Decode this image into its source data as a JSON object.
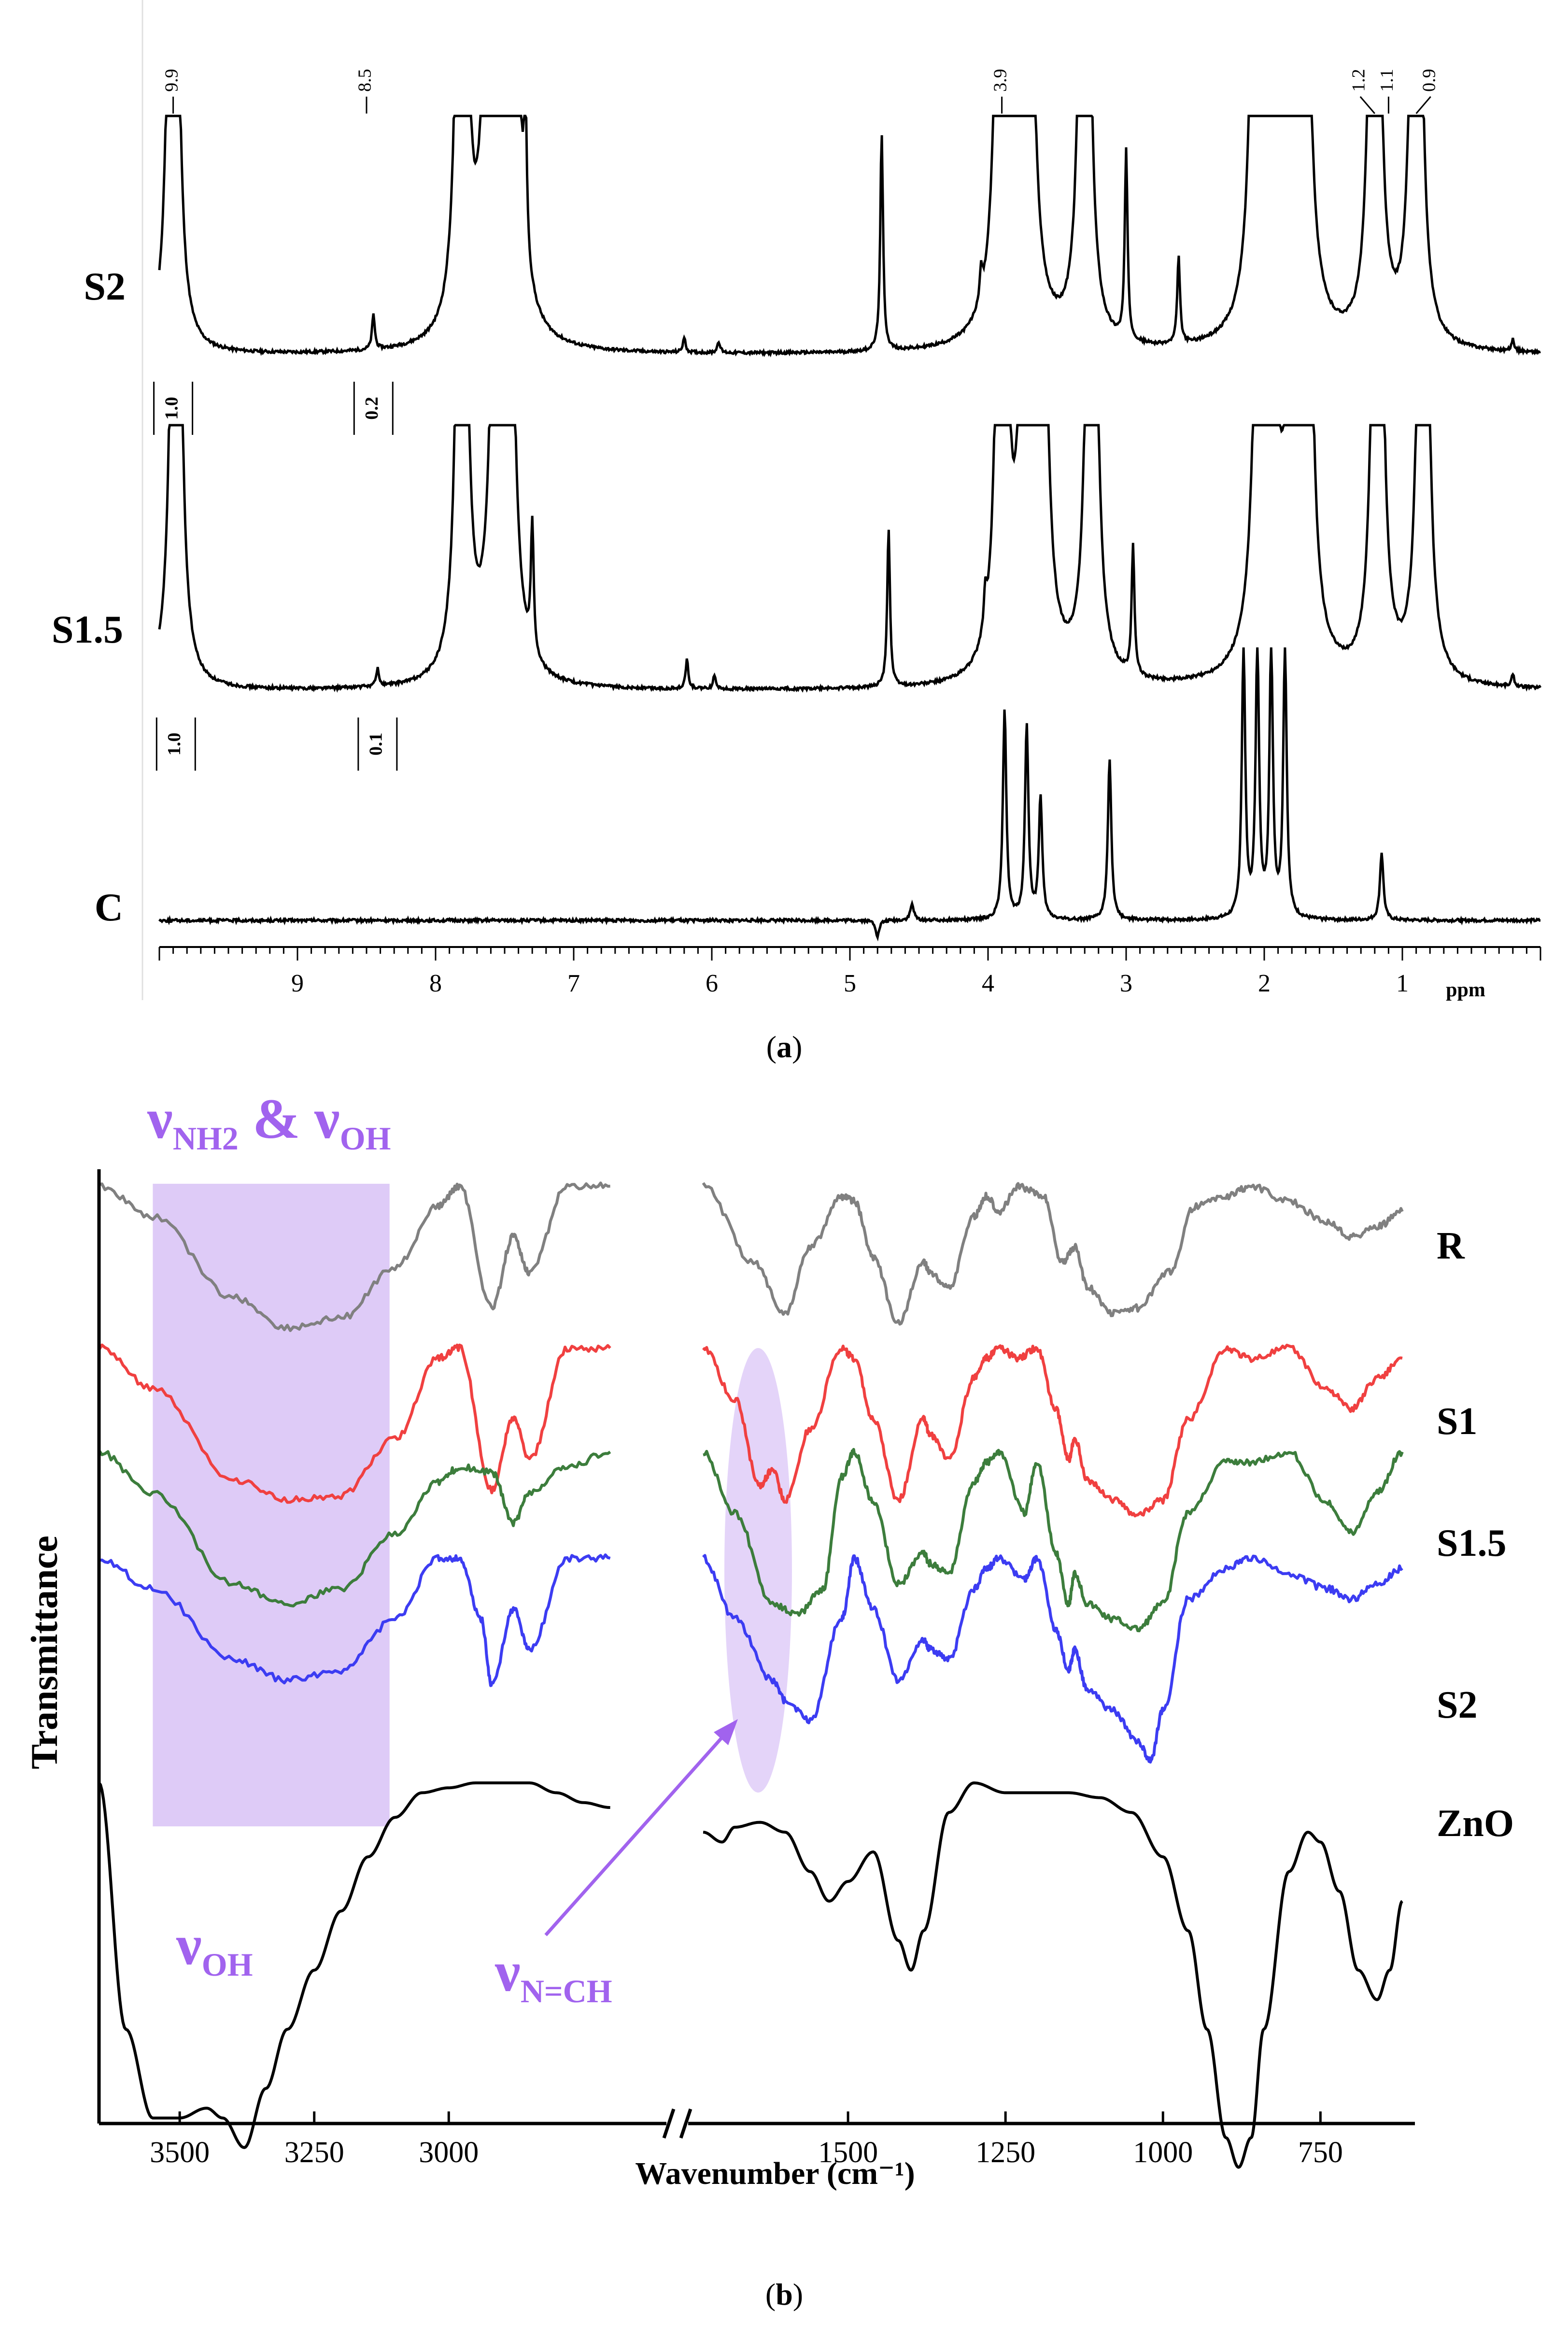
{
  "chart_data": [
    {
      "type": "line",
      "panel_label": "(a)",
      "panel_letter": "a",
      "xlabel": "ppm",
      "xlim": [
        10.0,
        0.0
      ],
      "x_ticks": [
        "9",
        "8",
        "7",
        "6",
        "5",
        "4",
        "3",
        "2",
        "1"
      ],
      "series": [
        {
          "name": "S2",
          "peaks": [
            {
              "ppm": 9.9,
              "height": 1.0,
              "clipped": true
            },
            {
              "ppm": 8.45,
              "height": 0.12
            },
            {
              "ppm": 7.81,
              "height": 1.0,
              "clipped": true
            },
            {
              "ppm": 7.6,
              "height": 1.0,
              "clipped": true
            },
            {
              "ppm": 7.52,
              "height": 1.0,
              "clipped": true
            },
            {
              "ppm": 7.45,
              "height": 1.0,
              "clipped": true
            },
            {
              "ppm": 7.35,
              "height": 0.5
            },
            {
              "ppm": 6.2,
              "height": 0.05
            },
            {
              "ppm": 5.95,
              "height": 0.04
            },
            {
              "ppm": 4.77,
              "height": 0.75
            },
            {
              "ppm": 4.05,
              "height": 0.1
            },
            {
              "ppm": 3.9,
              "height": 1.0,
              "clipped": true
            },
            {
              "ppm": 3.8,
              "height": 1.0,
              "clipped": true
            },
            {
              "ppm": 3.72,
              "height": 1.0,
              "clipped": true
            },
            {
              "ppm": 3.3,
              "height": 1.0,
              "clipped": true
            },
            {
              "ppm": 3.0,
              "height": 0.65
            },
            {
              "ppm": 2.62,
              "height": 0.3
            },
            {
              "ppm": 2.05,
              "height": 1.0,
              "clipped": true
            },
            {
              "ppm": 1.95,
              "height": 1.0,
              "clipped": true
            },
            {
              "ppm": 1.8,
              "height": 1.0,
              "clipped": true
            },
            {
              "ppm": 1.72,
              "height": 1.0,
              "clipped": true
            },
            {
              "ppm": 1.2,
              "height": 1.0,
              "clipped": true
            },
            {
              "ppm": 0.9,
              "height": 1.0,
              "clipped": true
            },
            {
              "ppm": 0.2,
              "height": 0.04
            }
          ],
          "peak_labels": [
            "9.9",
            "8.5",
            "3.9",
            "1.2",
            "1.1",
            "0.9"
          ],
          "integrals": [
            {
              "ppm": 9.9,
              "value": "1.0"
            },
            {
              "ppm": 8.45,
              "value": "0.2"
            }
          ]
        },
        {
          "name": "S1.5",
          "peaks": [
            {
              "ppm": 9.88,
              "height": 1.0,
              "clipped": true
            },
            {
              "ppm": 8.42,
              "height": 0.06
            },
            {
              "ppm": 7.81,
              "height": 1.0,
              "clipped": true
            },
            {
              "ppm": 7.55,
              "height": 1.0,
              "clipped": true
            },
            {
              "ppm": 7.48,
              "height": 1.0,
              "clipped": true
            },
            {
              "ppm": 7.3,
              "height": 0.45
            },
            {
              "ppm": 6.18,
              "height": 0.1
            },
            {
              "ppm": 5.98,
              "height": 0.05
            },
            {
              "ppm": 4.72,
              "height": 0.55
            },
            {
              "ppm": 4.02,
              "height": 0.12
            },
            {
              "ppm": 3.9,
              "height": 1.0,
              "clipped": true
            },
            {
              "ppm": 3.72,
              "height": 1.0,
              "clipped": true
            },
            {
              "ppm": 3.62,
              "height": 1.0,
              "clipped": true
            },
            {
              "ppm": 3.25,
              "height": 1.0,
              "clipped": true
            },
            {
              "ppm": 2.95,
              "height": 0.45
            },
            {
              "ppm": 2.02,
              "height": 1.0,
              "clipped": true
            },
            {
              "ppm": 1.97,
              "height": 1.0,
              "clipped": true
            },
            {
              "ppm": 1.78,
              "height": 1.0,
              "clipped": true
            },
            {
              "ppm": 1.7,
              "height": 1.0,
              "clipped": true
            },
            {
              "ppm": 1.18,
              "height": 1.0,
              "clipped": true
            },
            {
              "ppm": 0.85,
              "height": 1.0,
              "clipped": true
            },
            {
              "ppm": 0.2,
              "height": 0.04
            }
          ],
          "integrals": [
            {
              "ppm": 9.88,
              "value": "1.0"
            },
            {
              "ppm": 8.42,
              "value": "0.1"
            }
          ]
        },
        {
          "name": "C",
          "peaks": [
            {
              "ppm": 4.8,
              "height": -0.06
            },
            {
              "ppm": 4.55,
              "height": 0.06
            },
            {
              "ppm": 3.88,
              "height": 0.78
            },
            {
              "ppm": 3.72,
              "height": 0.72
            },
            {
              "ppm": 3.62,
              "height": 0.45
            },
            {
              "ppm": 3.12,
              "height": 0.6
            },
            {
              "ppm": 2.15,
              "height": 1.0
            },
            {
              "ppm": 2.05,
              "height": 1.0
            },
            {
              "ppm": 1.95,
              "height": 1.0
            },
            {
              "ppm": 1.85,
              "height": 1.0
            },
            {
              "ppm": 1.15,
              "height": 0.25
            }
          ]
        }
      ]
    },
    {
      "type": "line",
      "panel_label": "(b)",
      "panel_letter": "b",
      "xlabel": "Wavenumber (cm⁻¹)",
      "ylabel": "Transmittance",
      "axis_break": true,
      "x_segments": [
        {
          "xlim": [
            3650,
            2600
          ],
          "ticks": [
            3500,
            3250,
            3000
          ]
        },
        {
          "xlim": [
            1750,
            600
          ],
          "ticks": [
            1500,
            1250,
            1000,
            750
          ]
        }
      ],
      "tick_labels": [
        "3500",
        "3250",
        "3000",
        "1500",
        "1250",
        "1000",
        "750"
      ],
      "annotations": [
        {
          "base": "ν",
          "sub": "NH2",
          "connector": " & ",
          "base2": "ν",
          "sub2": "OH"
        },
        {
          "base": "ν",
          "sub": "OH"
        },
        {
          "base": "ν",
          "sub": "N=CH"
        }
      ],
      "highlight_region": [
        3550,
        3110
      ],
      "highlight_color": "#d8c2f6",
      "annotation_color": "#a163ee",
      "series": [
        {
          "name": "R",
          "color": "#808080",
          "x": [
            3650,
            3550,
            3400,
            3300,
            3200,
            3100,
            3020,
            2980,
            2920,
            2880,
            2850,
            2780,
            2700,
            1730,
            1650,
            1600,
            1560,
            1510,
            1490,
            1460,
            1420,
            1380,
            1370,
            1340,
            1300,
            1280,
            1260,
            1230,
            1190,
            1160,
            1140,
            1120,
            1080,
            1040,
            990,
            950,
            900,
            860,
            800,
            740,
            700,
            660,
            620
          ],
          "y": [
            0.0,
            0.06,
            0.22,
            0.28,
            0.26,
            0.16,
            0.04,
            0.0,
            0.24,
            0.1,
            0.17,
            0.0,
            0.0,
            0.0,
            0.15,
            0.25,
            0.12,
            0.02,
            0.03,
            0.14,
            0.27,
            0.15,
            0.17,
            0.2,
            0.06,
            0.02,
            0.05,
            0.0,
            0.02,
            0.15,
            0.12,
            0.2,
            0.25,
            0.24,
            0.17,
            0.04,
            0.02,
            0.0,
            0.03,
            0.07,
            0.1,
            0.08,
            0.05
          ]
        },
        {
          "name": "S1",
          "color": "#f04040",
          "x": [
            3650,
            3550,
            3400,
            3300,
            3200,
            3100,
            3020,
            2980,
            2920,
            2880,
            2850,
            2780,
            2700,
            1730,
            1680,
            1640,
            1620,
            1600,
            1560,
            1510,
            1490,
            1460,
            1420,
            1380,
            1370,
            1340,
            1300,
            1280,
            1260,
            1230,
            1200,
            1170,
            1150,
            1140,
            1120,
            1080,
            1040,
            1000,
            960,
            900,
            860,
            800,
            740,
            700,
            660,
            620
          ],
          "y": [
            0.0,
            0.08,
            0.26,
            0.3,
            0.29,
            0.18,
            0.02,
            0.0,
            0.28,
            0.14,
            0.22,
            0.0,
            0.0,
            0.0,
            0.1,
            0.27,
            0.24,
            0.3,
            0.16,
            0.0,
            0.02,
            0.14,
            0.3,
            0.14,
            0.17,
            0.22,
            0.06,
            0.02,
            0.0,
            0.02,
            0.0,
            0.12,
            0.22,
            0.18,
            0.26,
            0.3,
            0.33,
            0.3,
            0.14,
            0.0,
            0.02,
            0.0,
            0.08,
            0.12,
            0.06,
            0.02
          ]
        },
        {
          "name": "S1.5",
          "color": "#3c7d3c",
          "x": [
            3650,
            3550,
            3400,
            3300,
            3200,
            3100,
            3020,
            2980,
            2920,
            2880,
            2850,
            2780,
            2700,
            1730,
            1680,
            1620,
            1580,
            1540,
            1510,
            1490,
            1460,
            1420,
            1380,
            1370,
            1340,
            1300,
            1280,
            1260,
            1220,
            1200,
            1170,
            1150,
            1140,
            1120,
            1080,
            1040,
            1000,
            960,
            900,
            860,
            800,
            740,
            700,
            660,
            620
          ],
          "y": [
            0.0,
            0.08,
            0.26,
            0.3,
            0.27,
            0.16,
            0.06,
            0.03,
            0.04,
            0.14,
            0.08,
            0.03,
            0.0,
            0.0,
            0.12,
            0.3,
            0.32,
            0.27,
            0.05,
            0.0,
            0.1,
            0.26,
            0.2,
            0.22,
            0.24,
            0.06,
            0.02,
            0.0,
            0.12,
            0.02,
            0.2,
            0.3,
            0.24,
            0.3,
            0.33,
            0.35,
            0.3,
            0.12,
            0.02,
            0.02,
            0.0,
            0.1,
            0.16,
            0.08,
            0.0
          ]
        },
        {
          "name": "S2",
          "color": "#3c3cf2",
          "x": [
            3650,
            3550,
            3400,
            3300,
            3200,
            3100,
            3020,
            2980,
            2940,
            2920,
            2880,
            2850,
            2780,
            2700,
            1730,
            1680,
            1620,
            1600,
            1560,
            1510,
            1490,
            1460,
            1420,
            1380,
            1370,
            1340,
            1300,
            1280,
            1260,
            1220,
            1200,
            1170,
            1150,
            1140,
            1120,
            1080,
            1040,
            1020,
            1000,
            960,
            900,
            860,
            800,
            740,
            700,
            660,
            620
          ],
          "y": [
            0.0,
            0.06,
            0.2,
            0.24,
            0.22,
            0.12,
            0.0,
            0.0,
            0.12,
            0.25,
            0.1,
            0.18,
            0.0,
            0.0,
            0.0,
            0.12,
            0.24,
            0.28,
            0.32,
            0.12,
            0.0,
            0.1,
            0.24,
            0.16,
            0.18,
            0.2,
            0.06,
            0.02,
            0.0,
            0.04,
            0.0,
            0.14,
            0.22,
            0.18,
            0.26,
            0.3,
            0.36,
            0.4,
            0.3,
            0.08,
            0.02,
            0.0,
            0.03,
            0.06,
            0.08,
            0.05,
            0.02
          ]
        },
        {
          "name": "ZnO",
          "color": "#000000",
          "x": [
            3650,
            3600,
            3550,
            3500,
            3450,
            3420,
            3380,
            3340,
            3300,
            3250,
            3200,
            3150,
            3100,
            3050,
            3000,
            2950,
            2900,
            2850,
            2800,
            2750,
            2700,
            1730,
            1700,
            1680,
            1640,
            1600,
            1560,
            1530,
            1500,
            1460,
            1420,
            1400,
            1380,
            1340,
            1300,
            1250,
            1200,
            1150,
            1100,
            1050,
            1000,
            960,
            930,
            900,
            880,
            860,
            840,
            800,
            770,
            750,
            720,
            690,
            660,
            640,
            620
          ],
          "y": [
            0.0,
            0.5,
            0.68,
            0.68,
            0.66,
            0.68,
            0.74,
            0.62,
            0.5,
            0.38,
            0.26,
            0.15,
            0.07,
            0.02,
            0.01,
            0.0,
            0.0,
            0.0,
            0.02,
            0.04,
            0.05,
            0.1,
            0.12,
            0.09,
            0.08,
            0.1,
            0.18,
            0.24,
            0.2,
            0.14,
            0.32,
            0.38,
            0.3,
            0.06,
            0.0,
            0.02,
            0.02,
            0.02,
            0.03,
            0.06,
            0.15,
            0.3,
            0.5,
            0.72,
            0.78,
            0.72,
            0.5,
            0.18,
            0.1,
            0.12,
            0.22,
            0.38,
            0.44,
            0.38,
            0.24
          ]
        }
      ]
    }
  ]
}
